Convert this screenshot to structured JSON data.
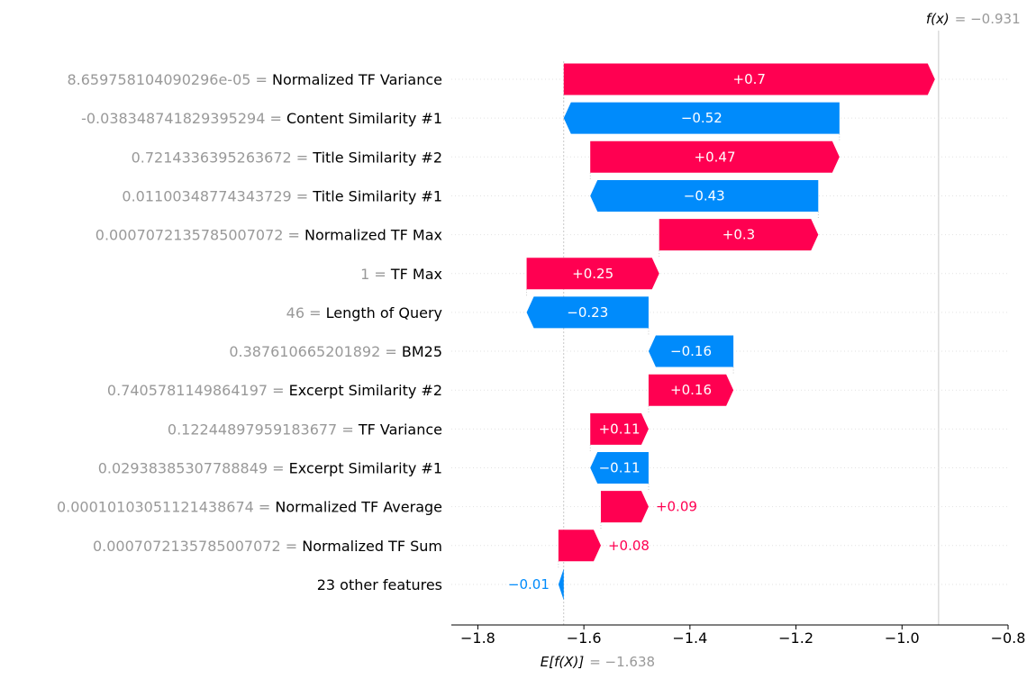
{
  "chart_data": {
    "type": "waterfall",
    "base_value": -1.638,
    "output_value": -0.931,
    "base_label": "E[f(X)]",
    "base_value_label": "= −1.638",
    "output_label": "f(x)",
    "output_value_label": "= −0.931",
    "xlim": [
      -1.85,
      -0.8
    ],
    "xticks": [
      -1.8,
      -1.6,
      -1.4,
      -1.2,
      -1.0,
      -0.8
    ],
    "xtick_labels": [
      "−1.8",
      "−1.6",
      "−1.4",
      "−1.2",
      "−1.0",
      "−0.8"
    ],
    "features": [
      {
        "value": "8.659758104090296e-05 =",
        "name": "Normalized TF Variance",
        "shap": 0.7,
        "label": "+0.7"
      },
      {
        "value": "-0.038348741829395294 =",
        "name": "Content Similarity #1",
        "shap": -0.52,
        "label": "−0.52"
      },
      {
        "value": "0.7214336395263672 =",
        "name": "Title Similarity #2",
        "shap": 0.47,
        "label": "+0.47"
      },
      {
        "value": "0.01100348774343729 =",
        "name": "Title Similarity #1",
        "shap": -0.43,
        "label": "−0.43"
      },
      {
        "value": "0.0007072135785007072 =",
        "name": "Normalized TF Max",
        "shap": 0.3,
        "label": "+0.3"
      },
      {
        "value": "1 =",
        "name": "TF Max",
        "shap": 0.25,
        "label": "+0.25"
      },
      {
        "value": "46 =",
        "name": "Length of Query",
        "shap": -0.23,
        "label": "−0.23"
      },
      {
        "value": "0.387610665201892 =",
        "name": "BM25",
        "shap": -0.16,
        "label": "−0.16"
      },
      {
        "value": "0.7405781149864197 =",
        "name": "Excerpt Similarity #2",
        "shap": 0.16,
        "label": "+0.16"
      },
      {
        "value": "0.12244897959183677 =",
        "name": "TF Variance",
        "shap": 0.11,
        "label": "+0.11"
      },
      {
        "value": "0.02938385307788849 =",
        "name": "Excerpt Similarity #1",
        "shap": -0.11,
        "label": "−0.11"
      },
      {
        "value": "0.00010103051121438674 =",
        "name": "Normalized TF Average",
        "shap": 0.09,
        "label": "+0.09"
      },
      {
        "value": "0.0007072135785007072 =",
        "name": "Normalized TF Sum",
        "shap": 0.08,
        "label": "+0.08"
      },
      {
        "value": "",
        "name": "23 other features",
        "shap": -0.01,
        "label": "−0.01"
      }
    ],
    "colors": {
      "positive": "#ff0051",
      "negative": "#008bfb",
      "grid": "#cccccc",
      "text_muted": "#999999"
    }
  }
}
